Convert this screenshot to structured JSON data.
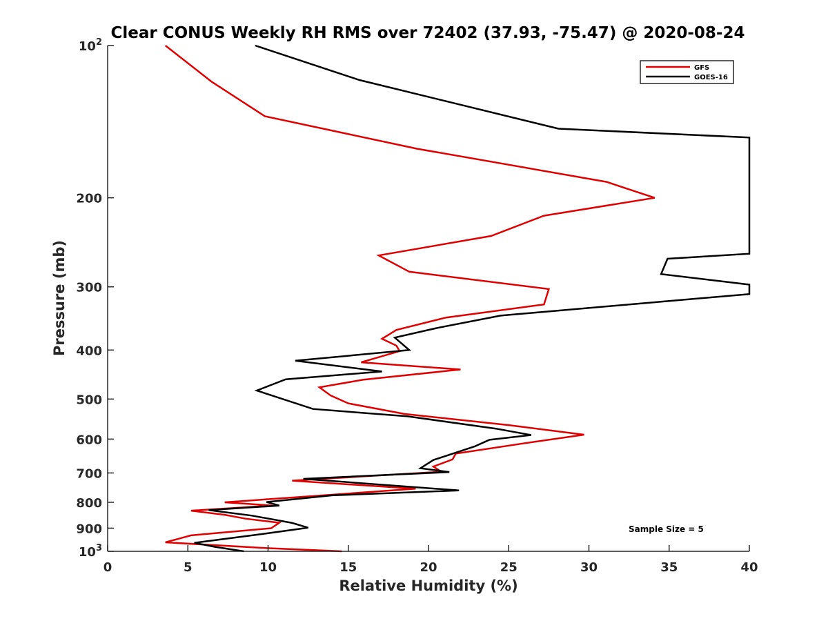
{
  "chart_data": {
    "type": "line",
    "title": "Clear CONUS Weekly RH RMS over 72402 (37.93, -75.47) @ 2020-08-24",
    "xlabel": "Relative Humidity (%)",
    "ylabel": "Pressure (mb)",
    "xlim": [
      0,
      40
    ],
    "ylim": [
      100,
      1000
    ],
    "yscale": "log",
    "y_reversed": true,
    "x_ticks": [
      {
        "value": 0,
        "label": "0"
      },
      {
        "value": 5,
        "label": "5"
      },
      {
        "value": 10,
        "label": "10"
      },
      {
        "value": 15,
        "label": "15"
      },
      {
        "value": 20,
        "label": "20"
      },
      {
        "value": 25,
        "label": "25"
      },
      {
        "value": 30,
        "label": "30"
      },
      {
        "value": 35,
        "label": "35"
      },
      {
        "value": 40,
        "label": "40"
      }
    ],
    "y_ticks": [
      {
        "value": 100,
        "base": "10",
        "exp": "2"
      },
      {
        "value": 200,
        "label": "200"
      },
      {
        "value": 300,
        "label": "300"
      },
      {
        "value": 400,
        "label": "400"
      },
      {
        "value": 500,
        "label": "500"
      },
      {
        "value": 600,
        "label": "600"
      },
      {
        "value": 700,
        "label": "700"
      },
      {
        "value": 800,
        "label": "800"
      },
      {
        "value": 900,
        "label": "900"
      },
      {
        "value": 1000,
        "base": "10",
        "exp": "3"
      }
    ],
    "legend_position": "top-right",
    "annotation": "Sample Size = 5",
    "series": [
      {
        "name": "GFS",
        "color": "#e00000",
        "points": [
          [
            3.6,
            100
          ],
          [
            6.5,
            118
          ],
          [
            9.8,
            138
          ],
          [
            19.3,
            160
          ],
          [
            31.1,
            186
          ],
          [
            34.1,
            200
          ],
          [
            27.2,
            217
          ],
          [
            23.9,
            238
          ],
          [
            16.9,
            260
          ],
          [
            18.8,
            280
          ],
          [
            27.5,
            303
          ],
          [
            27.2,
            325
          ],
          [
            21.1,
            345
          ],
          [
            18.0,
            365
          ],
          [
            17.1,
            380
          ],
          [
            18.0,
            392
          ],
          [
            18.2,
            402
          ],
          [
            15.8,
            423
          ],
          [
            22.0,
            437
          ],
          [
            15.9,
            458
          ],
          [
            13.2,
            474
          ],
          [
            13.9,
            492
          ],
          [
            15.0,
            510
          ],
          [
            18.5,
            535
          ],
          [
            25.0,
            563
          ],
          [
            29.7,
            588
          ],
          [
            25.9,
            612
          ],
          [
            21.7,
            641
          ],
          [
            21.5,
            658
          ],
          [
            20.3,
            680
          ],
          [
            20.8,
            696
          ],
          [
            11.5,
            725
          ],
          [
            19.2,
            752
          ],
          [
            11.7,
            782
          ],
          [
            7.3,
            800
          ],
          [
            10.3,
            812
          ],
          [
            5.2,
            831
          ],
          [
            7.3,
            847
          ],
          [
            8.6,
            862
          ],
          [
            10.7,
            878
          ],
          [
            10.2,
            900
          ],
          [
            5.2,
            930
          ],
          [
            3.6,
            960
          ],
          [
            9.8,
            985
          ],
          [
            14.6,
            1000
          ]
        ]
      },
      {
        "name": "GOES-16",
        "color": "#000000",
        "points": [
          [
            9.2,
            100
          ],
          [
            15.7,
            117
          ],
          [
            28.1,
            146
          ],
          [
            40.0,
            152
          ],
          [
            40.0,
            258
          ],
          [
            34.9,
            264
          ],
          [
            34.5,
            283
          ],
          [
            40.0,
            297
          ],
          [
            40.0,
            310
          ],
          [
            24.5,
            342
          ],
          [
            20.5,
            362
          ],
          [
            17.9,
            378
          ],
          [
            18.8,
            400
          ],
          [
            11.7,
            420
          ],
          [
            17.1,
            441
          ],
          [
            11.1,
            457
          ],
          [
            9.3,
            481
          ],
          [
            12.8,
            523
          ],
          [
            18.7,
            541
          ],
          [
            24.2,
            572
          ],
          [
            26.4,
            589
          ],
          [
            23.8,
            602
          ],
          [
            22.9,
            620
          ],
          [
            20.3,
            660
          ],
          [
            19.5,
            685
          ],
          [
            21.3,
            697
          ],
          [
            12.2,
            719
          ],
          [
            21.9,
            758
          ],
          [
            14.0,
            775
          ],
          [
            9.9,
            799
          ],
          [
            10.7,
            812
          ],
          [
            6.3,
            829
          ],
          [
            9.0,
            850
          ],
          [
            11.5,
            879
          ],
          [
            12.5,
            898
          ],
          [
            9.7,
            924
          ],
          [
            5.4,
            962
          ],
          [
            6.7,
            980
          ],
          [
            8.5,
            1000
          ]
        ]
      }
    ]
  }
}
